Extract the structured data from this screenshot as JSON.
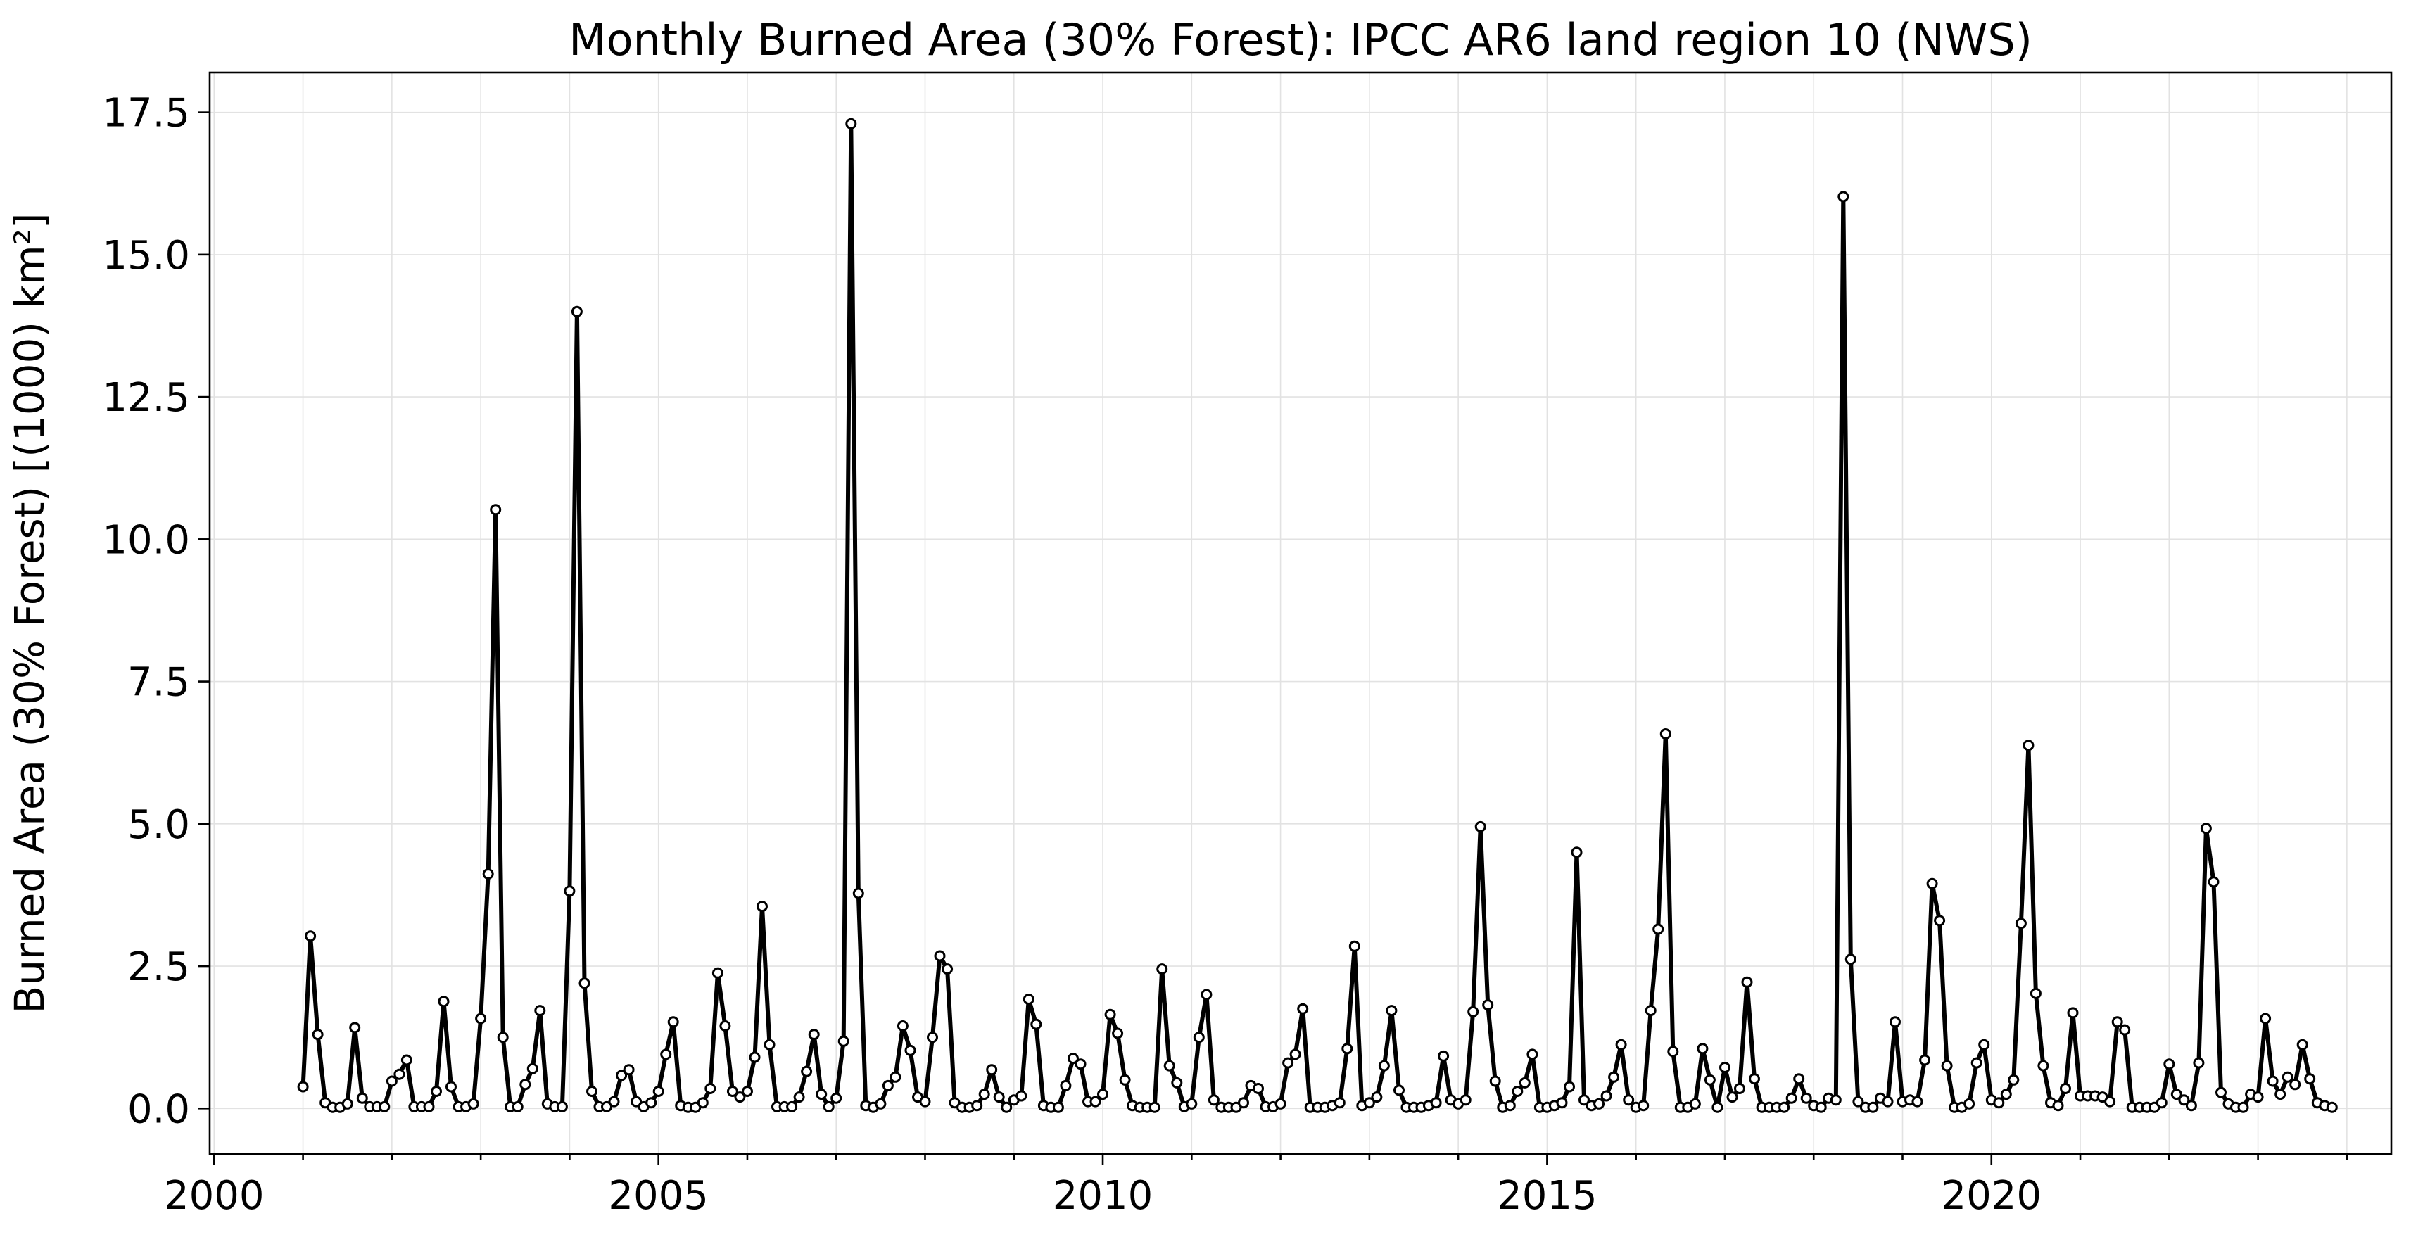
{
  "chart_data": {
    "type": "line",
    "title": "Monthly Burned Area (30% Forest): IPCC AR6 land region 10 (NWS)",
    "xlabel": "",
    "ylabel": "Burned Area (30% Forest) [(1000) km²]",
    "xlim": [
      1999.95,
      2024.5
    ],
    "ylim": [
      -0.8,
      18.2
    ],
    "xticks": [
      "2000",
      "2005",
      "2010",
      "2015",
      "2020"
    ],
    "yticks": [
      "0.0",
      "2.5",
      "5.0",
      "7.5",
      "10.0",
      "12.5",
      "15.0",
      "17.5"
    ],
    "grid": true,
    "marker": "o",
    "series": [
      {
        "start": "2001-01",
        "step": "monthly",
        "values": [
          0.38,
          3.03,
          1.3,
          0.1,
          0.02,
          0.02,
          0.08,
          1.42,
          0.18,
          0.03,
          0.03,
          0.03,
          0.48,
          0.6,
          0.85,
          0.03,
          0.03,
          0.03,
          0.3,
          1.88,
          0.38,
          0.03,
          0.03,
          0.08,
          1.58,
          4.12,
          10.52,
          1.25,
          0.03,
          0.03,
          0.42,
          0.7,
          1.72,
          0.08,
          0.03,
          0.03,
          3.82,
          14.0,
          2.2,
          0.3,
          0.03,
          0.03,
          0.12,
          0.58,
          0.68,
          0.12,
          0.03,
          0.1,
          0.3,
          0.95,
          1.52,
          0.05,
          0.02,
          0.02,
          0.1,
          0.35,
          2.38,
          1.45,
          0.3,
          0.2,
          0.3,
          0.9,
          3.55,
          1.12,
          0.03,
          0.03,
          0.03,
          0.2,
          0.65,
          1.3,
          0.25,
          0.03,
          0.18,
          1.18,
          17.3,
          3.78,
          0.05,
          0.02,
          0.08,
          0.4,
          0.55,
          1.45,
          1.02,
          0.2,
          0.12,
          1.25,
          2.68,
          2.45,
          0.1,
          0.02,
          0.02,
          0.05,
          0.25,
          0.68,
          0.2,
          0.02,
          0.15,
          0.22,
          1.92,
          1.48,
          0.05,
          0.02,
          0.02,
          0.4,
          0.88,
          0.78,
          0.12,
          0.12,
          0.25,
          1.65,
          1.32,
          0.5,
          0.05,
          0.02,
          0.02,
          0.02,
          2.45,
          0.75,
          0.45,
          0.03,
          0.08,
          1.25,
          2.0,
          0.15,
          0.02,
          0.02,
          0.02,
          0.1,
          0.4,
          0.35,
          0.03,
          0.03,
          0.08,
          0.8,
          0.95,
          1.75,
          0.02,
          0.02,
          0.02,
          0.05,
          0.1,
          1.05,
          2.85,
          0.05,
          0.1,
          0.2,
          0.75,
          1.72,
          0.32,
          0.02,
          0.02,
          0.02,
          0.05,
          0.1,
          0.92,
          0.15,
          0.08,
          0.15,
          1.7,
          4.95,
          1.82,
          0.48,
          0.02,
          0.05,
          0.3,
          0.45,
          0.95,
          0.02,
          0.02,
          0.05,
          0.1,
          0.38,
          4.5,
          0.15,
          0.05,
          0.08,
          0.22,
          0.55,
          1.12,
          0.15,
          0.02,
          0.05,
          1.72,
          3.15,
          6.58,
          1.0,
          0.02,
          0.02,
          0.08,
          1.05,
          0.5,
          0.02,
          0.72,
          0.2,
          0.35,
          2.22,
          0.52,
          0.02,
          0.02,
          0.02,
          0.02,
          0.18,
          0.52,
          0.18,
          0.05,
          0.02,
          0.18,
          0.15,
          16.02,
          2.62,
          0.12,
          0.02,
          0.02,
          0.18,
          0.12,
          1.52,
          0.12,
          0.15,
          0.12,
          0.85,
          3.95,
          3.3,
          0.75,
          0.02,
          0.02,
          0.08,
          0.8,
          1.12,
          0.15,
          0.1,
          0.25,
          0.5,
          3.25,
          6.38,
          2.02,
          0.75,
          0.1,
          0.05,
          0.35,
          1.68,
          0.22,
          0.22,
          0.22,
          0.2,
          0.12,
          1.52,
          1.38,
          0.02,
          0.02,
          0.02,
          0.02,
          0.1,
          0.78,
          0.25,
          0.15,
          0.05,
          0.8,
          4.92,
          3.98,
          0.28,
          0.08,
          0.02,
          0.02,
          0.25,
          0.2,
          1.58,
          0.48,
          0.25,
          0.55,
          0.42,
          1.12,
          0.52,
          0.1,
          0.05,
          0.02
        ]
      }
    ]
  }
}
